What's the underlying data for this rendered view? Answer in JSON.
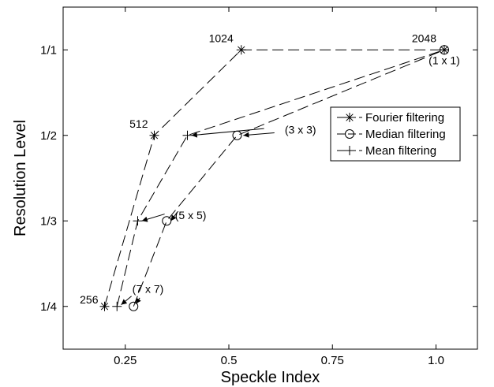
{
  "chart_data": {
    "type": "line",
    "title": "",
    "xlabel": "Speckle Index",
    "ylabel": "Resolution Level",
    "xlim": [
      0.1,
      1.1
    ],
    "ylim": [
      0.5,
      4.5
    ],
    "x_ticks": [
      {
        "value": 0.25,
        "label": "0.25"
      },
      {
        "value": 0.5,
        "label": "0.5"
      },
      {
        "value": 0.75,
        "label": "0.75"
      },
      {
        "value": 1.0,
        "label": "1.0"
      }
    ],
    "y_ticks": [
      {
        "value": 1,
        "label": "1/4"
      },
      {
        "value": 2,
        "label": "1/3"
      },
      {
        "value": 3,
        "label": "1/2"
      },
      {
        "value": 4,
        "label": "1/1"
      }
    ],
    "grid": false,
    "legend_position": "right",
    "series": [
      {
        "name": "Fourier filtering",
        "marker": "asterisk",
        "points": [
          {
            "x": 0.2,
            "y": 1
          },
          {
            "x": 0.32,
            "y": 3
          },
          {
            "x": 0.53,
            "y": 4
          },
          {
            "x": 1.02,
            "y": 4
          }
        ]
      },
      {
        "name": "Median filtering",
        "marker": "circle",
        "points": [
          {
            "x": 0.27,
            "y": 1
          },
          {
            "x": 0.35,
            "y": 2
          },
          {
            "x": 0.52,
            "y": 3
          },
          {
            "x": 1.02,
            "y": 4
          }
        ]
      },
      {
        "name": "Mean filtering",
        "marker": "plus",
        "points": [
          {
            "x": 0.23,
            "y": 1
          },
          {
            "x": 0.28,
            "y": 2
          },
          {
            "x": 0.4,
            "y": 3
          },
          {
            "x": 1.02,
            "y": 4
          }
        ]
      }
    ],
    "point_labels": [
      {
        "text": "256",
        "x": 0.2,
        "y": 1,
        "anchor": "end",
        "dx": -8,
        "dy": -4
      },
      {
        "text": "512",
        "x": 0.32,
        "y": 3,
        "anchor": "end",
        "dx": -8,
        "dy": -10
      },
      {
        "text": "1024",
        "x": 0.53,
        "y": 4,
        "anchor": "end",
        "dx": -10,
        "dy": -10
      },
      {
        "text": "2048",
        "x": 1.02,
        "y": 4,
        "anchor": "end",
        "dx": -10,
        "dy": -10
      }
    ],
    "annotations": [
      {
        "text": "(1 x 1)",
        "text_at": {
          "x": 1.02,
          "y": 3.83
        },
        "text_anchor": "middle",
        "arrows": []
      },
      {
        "text": "(3 x 3)",
        "text_at": {
          "x": 0.635,
          "y": 3.02
        },
        "text_anchor": "start",
        "arrows": [
          {
            "from": {
              "x": 0.585,
              "y": 3.08
            },
            "to": {
              "x": 0.41,
              "y": 3.0
            }
          },
          {
            "from": {
              "x": 0.61,
              "y": 3.03
            },
            "to": {
              "x": 0.535,
              "y": 3.0
            }
          }
        ]
      },
      {
        "text": "(5 x 5)",
        "text_at": {
          "x": 0.37,
          "y": 2.02
        },
        "text_anchor": "start",
        "arrows": [
          {
            "from": {
              "x": 0.345,
              "y": 2.08
            },
            "to": {
              "x": 0.29,
              "y": 2.0
            }
          },
          {
            "from": {
              "x": 0.375,
              "y": 2.1
            },
            "to": {
              "x": 0.36,
              "y": 2.0
            }
          }
        ]
      },
      {
        "text": "(7 x 7)",
        "text_at": {
          "x": 0.267,
          "y": 1.16
        },
        "text_anchor": "start",
        "arrows": [
          {
            "from": {
              "x": 0.265,
              "y": 1.12
            },
            "to": {
              "x": 0.24,
              "y": 1.02
            }
          },
          {
            "from": {
              "x": 0.285,
              "y": 1.1
            },
            "to": {
              "x": 0.275,
              "y": 1.03
            }
          }
        ]
      }
    ]
  }
}
